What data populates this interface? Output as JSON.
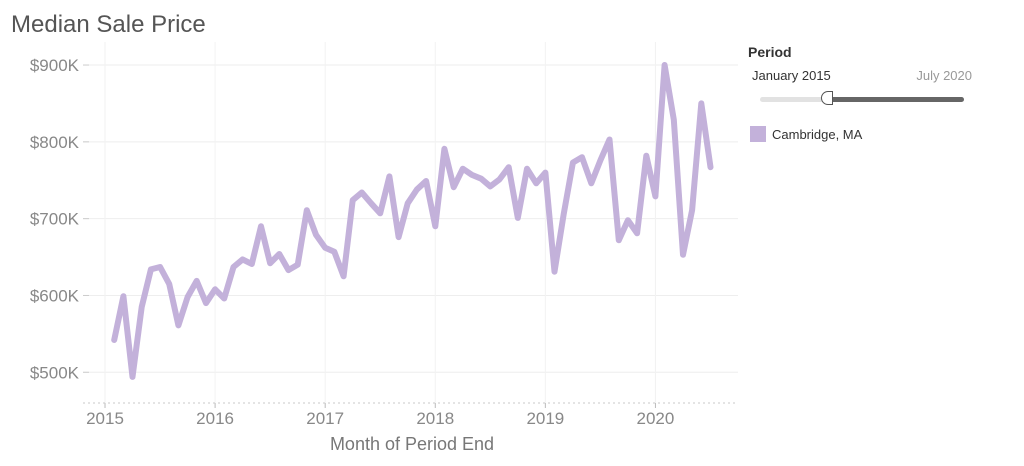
{
  "chart_data": {
    "type": "line",
    "title": "Median Sale Price",
    "xlabel": "Month of Period End",
    "ylabel": "",
    "color": "#c3b1da",
    "xlim": [
      2014.8,
      2020.75
    ],
    "ylim": [
      460000,
      930000
    ],
    "x_ticks": [
      2015,
      2016,
      2017,
      2018,
      2019,
      2020
    ],
    "x_tick_labels": [
      "2015",
      "2016",
      "2017",
      "2018",
      "2019",
      "2020"
    ],
    "y_ticks": [
      500000,
      600000,
      700000,
      800000,
      900000
    ],
    "y_tick_labels": [
      "$500K",
      "$600K",
      "$700K",
      "$800K",
      "$900K"
    ],
    "series": [
      {
        "name": "Cambridge, MA",
        "x": [
          2015.083,
          2015.167,
          2015.25,
          2015.333,
          2015.417,
          2015.5,
          2015.583,
          2015.667,
          2015.75,
          2015.833,
          2015.917,
          2016.0,
          2016.083,
          2016.167,
          2016.25,
          2016.333,
          2016.417,
          2016.5,
          2016.583,
          2016.667,
          2016.75,
          2016.833,
          2016.917,
          2017.0,
          2017.083,
          2017.167,
          2017.25,
          2017.333,
          2017.417,
          2017.5,
          2017.583,
          2017.667,
          2017.75,
          2017.833,
          2017.917,
          2018.0,
          2018.083,
          2018.167,
          2018.25,
          2018.333,
          2018.417,
          2018.5,
          2018.583,
          2018.667,
          2018.75,
          2018.833,
          2018.917,
          2019.0,
          2019.083,
          2019.167,
          2019.25,
          2019.333,
          2019.417,
          2019.5,
          2019.583,
          2019.667,
          2019.75,
          2019.833,
          2019.917,
          2020.0,
          2020.083,
          2020.167,
          2020.25,
          2020.333,
          2020.417,
          2020.5
        ],
        "values": [
          542000,
          599000,
          494000,
          585000,
          634000,
          637000,
          615000,
          561000,
          598000,
          619000,
          590000,
          608000,
          596000,
          637000,
          647000,
          641000,
          690000,
          642000,
          654000,
          633000,
          640000,
          711000,
          679000,
          662000,
          657000,
          625000,
          724000,
          734000,
          720000,
          707000,
          755000,
          676000,
          720000,
          738000,
          749000,
          690000,
          791000,
          741000,
          765000,
          757000,
          752000,
          742000,
          751000,
          767000,
          701000,
          765000,
          746000,
          760000,
          631000,
          706000,
          773000,
          780000,
          746000,
          776000,
          803000,
          672000,
          698000,
          681000,
          782000,
          729000,
          900000,
          829000,
          653000,
          711000,
          850000,
          767000
        ]
      }
    ]
  },
  "legend": {
    "heading": "Period",
    "slider_start_label": "January 2015",
    "slider_end_label": "July 2020",
    "slider_start_fraction": 0.33,
    "slider_end_fraction": 1.0,
    "series_label": "Cambridge, MA",
    "series_color": "#c3b1da"
  }
}
